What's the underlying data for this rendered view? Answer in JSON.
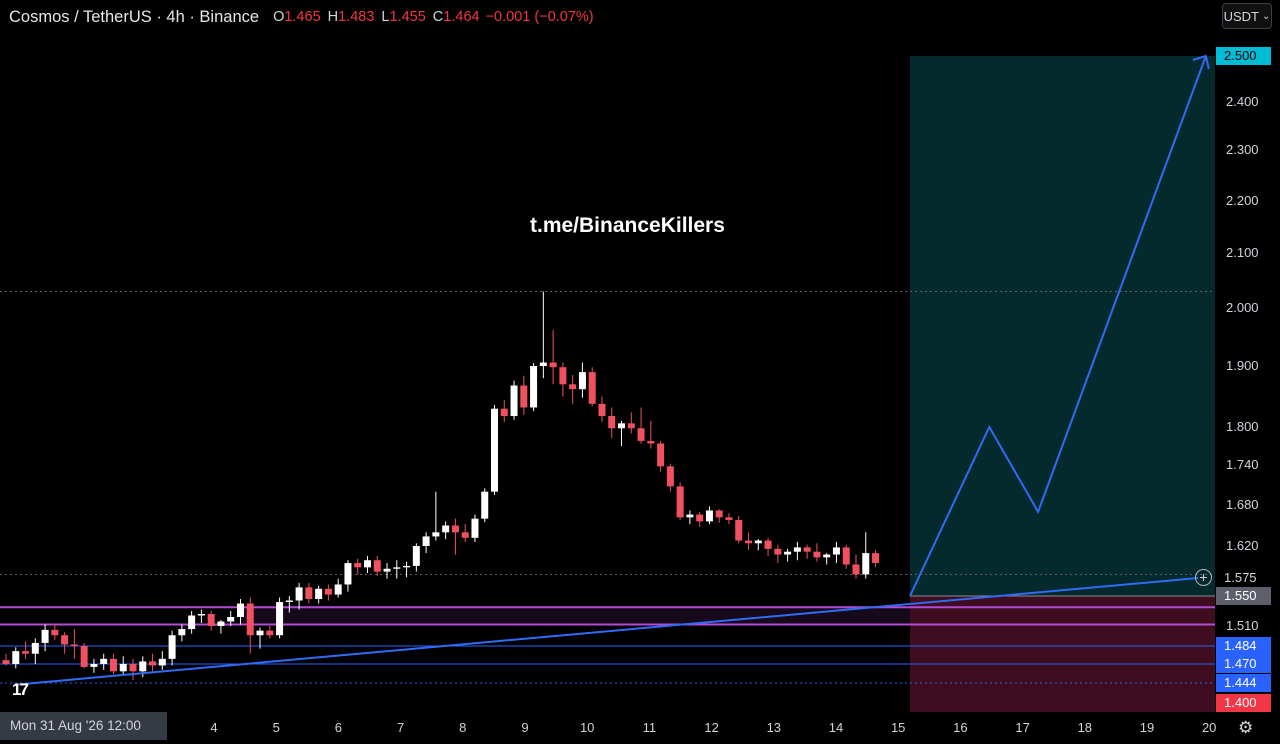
{
  "header": {
    "symbol": "Cosmos / TetherUS · 4h · Binance",
    "o_label": "O",
    "o_value": "1.465",
    "h_label": "H",
    "h_value": "1.483",
    "l_label": "L",
    "l_value": "1.455",
    "c_label": "C",
    "c_value": "1.464",
    "change": "−0.001 (−0.07%)"
  },
  "currency_button": {
    "label": "USDT",
    "chevron": "⌄"
  },
  "watermark": "t.me/BinanceKillers",
  "price_axis": {
    "ticks": [
      "2.400",
      "2.300",
      "2.200",
      "2.100",
      "2.000",
      "1.900",
      "1.800",
      "1.740",
      "1.680",
      "1.620",
      "1.510"
    ],
    "tags": [
      {
        "label": "2.500",
        "bg": "#00bcd4",
        "fg": "#000000"
      },
      {
        "label": "1.575",
        "bg": "#000000",
        "fg": "#d1d4dc"
      },
      {
        "label": "1.550",
        "bg": "#5d606b",
        "fg": "#ffffff"
      },
      {
        "label": "1.484",
        "bg": "#2962ff",
        "fg": "#ffffff"
      },
      {
        "label": "1.470",
        "bg": "#2962ff",
        "fg": "#ffffff"
      },
      {
        "label": "1.444",
        "bg": "#2962ff",
        "fg": "#ffffff"
      },
      {
        "label": "1.400",
        "bg": "#f23645",
        "fg": "#ffffff"
      }
    ]
  },
  "time_axis": {
    "current_label": "Mon 31 Aug '26   12:00",
    "ticks": [
      "4",
      "5",
      "6",
      "7",
      "8",
      "9",
      "10",
      "11",
      "12",
      "13",
      "14",
      "15",
      "16",
      "17",
      "18",
      "19",
      "20"
    ]
  },
  "colors": {
    "up": "#ffffff",
    "down": "#f05060",
    "profit_zone": "#052a2d",
    "loss_zone": "#3e0d1f",
    "projection": "#2f6bf4",
    "purple": "#b24cd8",
    "blue_level": "#2962ff"
  },
  "icons": {
    "logo": "tradingview-logo-icon",
    "settings": "gear-icon",
    "add": "plus-circle-icon"
  },
  "chart_data": {
    "type": "candlestick",
    "symbol": "ATOM/USDT",
    "timeframe": "4h",
    "exchange": "Binance",
    "candles": [
      [
        1.473,
        1.478,
        1.468,
        1.47
      ],
      [
        1.47,
        1.483,
        1.464,
        1.48
      ],
      [
        1.48,
        1.49,
        1.474,
        1.478
      ],
      [
        1.478,
        1.494,
        1.47,
        1.488
      ],
      [
        1.488,
        1.512,
        1.48,
        1.505
      ],
      [
        1.505,
        1.512,
        1.492,
        1.498
      ],
      [
        1.498,
        1.502,
        1.478,
        1.486
      ],
      [
        1.486,
        1.506,
        1.474,
        1.484
      ],
      [
        1.484,
        1.488,
        1.464,
        1.466
      ],
      [
        1.466,
        1.474,
        1.458,
        1.47
      ],
      [
        1.47,
        1.478,
        1.462,
        1.474
      ],
      [
        1.474,
        1.478,
        1.456,
        1.46
      ],
      [
        1.46,
        1.476,
        1.454,
        1.47
      ],
      [
        1.47,
        1.474,
        1.448,
        1.46
      ],
      [
        1.46,
        1.476,
        1.452,
        1.472
      ],
      [
        1.472,
        1.478,
        1.46,
        1.468
      ],
      [
        1.468,
        1.48,
        1.462,
        1.474
      ],
      [
        1.474,
        1.504,
        1.468,
        1.498
      ],
      [
        1.498,
        1.512,
        1.49,
        1.506
      ],
      [
        1.506,
        1.53,
        1.5,
        1.524
      ],
      [
        1.524,
        1.532,
        1.514,
        1.526
      ],
      [
        1.526,
        1.53,
        1.504,
        1.51
      ],
      [
        1.51,
        1.518,
        1.5,
        1.516
      ],
      [
        1.516,
        1.53,
        1.51,
        1.522
      ],
      [
        1.522,
        1.546,
        1.512,
        1.54
      ],
      [
        1.54,
        1.548,
        1.478,
        1.498
      ],
      [
        1.498,
        1.508,
        1.482,
        1.504
      ],
      [
        1.504,
        1.51,
        1.494,
        1.498
      ],
      [
        1.498,
        1.548,
        1.494,
        1.542
      ],
      [
        1.542,
        1.55,
        1.528,
        1.544
      ],
      [
        1.544,
        1.568,
        1.532,
        1.562
      ],
      [
        1.562,
        1.568,
        1.54,
        1.546
      ],
      [
        1.546,
        1.564,
        1.54,
        1.56
      ],
      [
        1.56,
        1.566,
        1.544,
        1.552
      ],
      [
        1.552,
        1.574,
        1.548,
        1.566
      ],
      [
        1.566,
        1.6,
        1.556,
        1.596
      ],
      [
        1.596,
        1.602,
        1.58,
        1.59
      ],
      [
        1.59,
        1.606,
        1.582,
        1.6
      ],
      [
        1.6,
        1.606,
        1.578,
        1.584
      ],
      [
        1.584,
        1.596,
        1.574,
        1.588
      ],
      [
        1.588,
        1.6,
        1.574,
        1.59
      ],
      [
        1.59,
        1.598,
        1.576,
        1.592
      ],
      [
        1.592,
        1.624,
        1.584,
        1.62
      ],
      [
        1.62,
        1.64,
        1.61,
        1.634
      ],
      [
        1.634,
        1.7,
        1.628,
        1.64
      ],
      [
        1.64,
        1.656,
        1.63,
        1.65
      ],
      [
        1.65,
        1.66,
        1.608,
        1.64
      ],
      [
        1.64,
        1.652,
        1.626,
        1.632
      ],
      [
        1.632,
        1.666,
        1.626,
        1.66
      ],
      [
        1.66,
        1.705,
        1.655,
        1.7
      ],
      [
        1.7,
        1.836,
        1.695,
        1.83
      ],
      [
        1.83,
        1.844,
        1.808,
        1.818
      ],
      [
        1.818,
        1.876,
        1.812,
        1.868
      ],
      [
        1.868,
        1.884,
        1.82,
        1.832
      ],
      [
        1.832,
        1.905,
        1.826,
        1.9
      ],
      [
        1.9,
        2.03,
        1.88,
        1.906
      ],
      [
        1.906,
        1.962,
        1.87,
        1.898
      ],
      [
        1.898,
        1.906,
        1.85,
        1.87
      ],
      [
        1.87,
        1.885,
        1.838,
        1.862
      ],
      [
        1.862,
        1.906,
        1.848,
        1.89
      ],
      [
        1.89,
        1.898,
        1.834,
        1.838
      ],
      [
        1.838,
        1.85,
        1.808,
        1.818
      ],
      [
        1.818,
        1.832,
        1.782,
        1.798
      ],
      [
        1.798,
        1.81,
        1.77,
        1.806
      ],
      [
        1.806,
        1.824,
        1.79,
        1.798
      ],
      [
        1.798,
        1.832,
        1.774,
        1.778
      ],
      [
        1.778,
        1.81,
        1.766,
        1.774
      ],
      [
        1.774,
        1.778,
        1.73,
        1.738
      ],
      [
        1.738,
        1.742,
        1.7,
        1.708
      ],
      [
        1.708,
        1.714,
        1.658,
        1.662
      ],
      [
        1.662,
        1.672,
        1.652,
        1.666
      ],
      [
        1.666,
        1.67,
        1.648,
        1.656
      ],
      [
        1.656,
        1.678,
        1.652,
        1.672
      ],
      [
        1.672,
        1.674,
        1.654,
        1.662
      ],
      [
        1.662,
        1.668,
        1.652,
        1.658
      ],
      [
        1.658,
        1.664,
        1.624,
        1.628
      ],
      [
        1.628,
        1.64,
        1.614,
        1.624
      ],
      [
        1.624,
        1.63,
        1.614,
        1.628
      ],
      [
        1.628,
        1.632,
        1.606,
        1.616
      ],
      [
        1.616,
        1.622,
        1.596,
        1.608
      ],
      [
        1.608,
        1.616,
        1.598,
        1.612
      ],
      [
        1.612,
        1.626,
        1.6,
        1.618
      ],
      [
        1.618,
        1.622,
        1.602,
        1.612
      ],
      [
        1.612,
        1.624,
        1.598,
        1.604
      ],
      [
        1.604,
        1.61,
        1.594,
        1.608
      ],
      [
        1.608,
        1.626,
        1.596,
        1.618
      ],
      [
        1.618,
        1.622,
        1.588,
        1.594
      ],
      [
        1.594,
        1.608,
        1.574,
        1.58
      ],
      [
        1.58,
        1.64,
        1.574,
        1.61
      ],
      [
        1.61,
        1.614,
        1.59,
        1.596
      ]
    ],
    "levels": [
      {
        "price": 2.03,
        "style": "dotted",
        "color": "#5d606b"
      },
      {
        "price": 1.58,
        "style": "dotted",
        "color": "#5d606b"
      },
      {
        "price": 1.535,
        "style": "solid",
        "color": "#b24cd8"
      },
      {
        "price": 1.512,
        "style": "solid",
        "color": "#b24cd8"
      },
      {
        "price": 1.484,
        "style": "solid",
        "color": "#2962ff"
      },
      {
        "price": 1.47,
        "style": "solid",
        "color": "#2962ff"
      },
      {
        "price": 1.444,
        "style": "dotted",
        "color": "#2962ff"
      }
    ],
    "trendline": [
      [
        0,
        1.44
      ],
      [
        1.0,
        1.575
      ]
    ],
    "position": {
      "entry": 1.55,
      "target": 2.5,
      "stop": 1.4
    },
    "projection_path": [
      [
        0,
        1.55
      ],
      [
        0.26,
        1.8
      ],
      [
        0.42,
        1.67
      ],
      [
        0.97,
        2.5
      ]
    ]
  }
}
